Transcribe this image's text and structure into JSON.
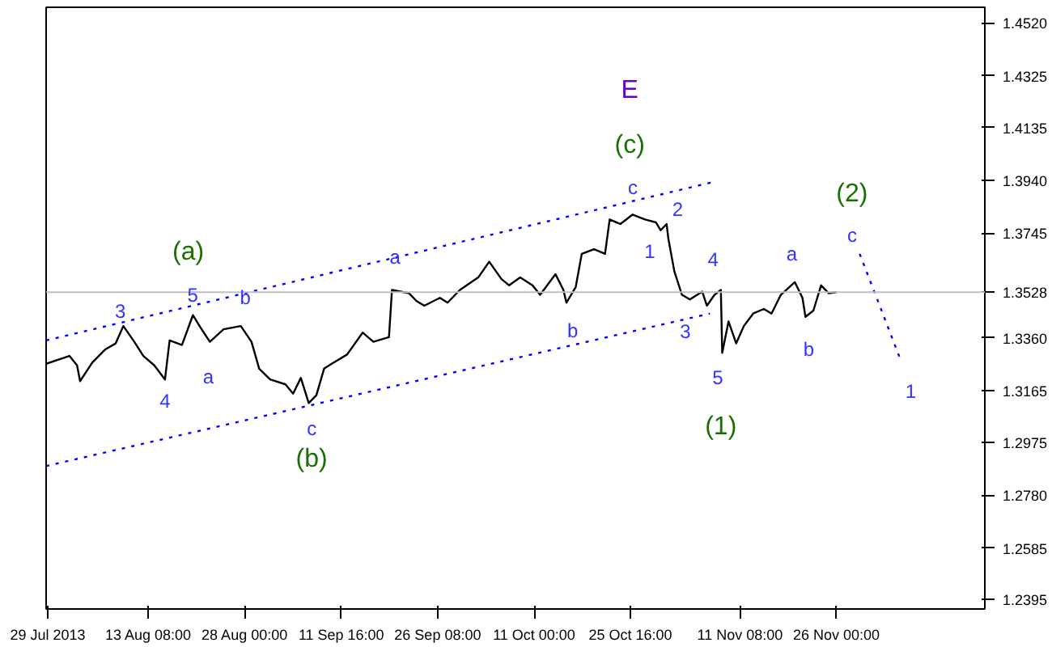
{
  "chart_data": {
    "type": "line",
    "grid": false,
    "xlim": [
      "2013-07-28T18:00",
      "2013-12-18T14:00"
    ],
    "ylim": [
      1.236,
      1.4578
    ],
    "xticks": [
      {
        "value": "2013-07-29T00:00",
        "label": "29 Jul 2013"
      },
      {
        "value": "2013-08-13T08:00",
        "label": "13 Aug 08:00"
      },
      {
        "value": "2013-08-28T00:00",
        "label": "28 Aug 00:00"
      },
      {
        "value": "2013-09-11T16:00",
        "label": "11 Sep 16:00"
      },
      {
        "value": "2013-09-26T08:00",
        "label": "26 Sep 08:00"
      },
      {
        "value": "2013-10-11T00:00",
        "label": "11 Oct 00:00"
      },
      {
        "value": "2013-10-25T16:00",
        "label": "25 Oct 16:00"
      },
      {
        "value": "2013-11-11T08:00",
        "label": "11 Nov 08:00"
      },
      {
        "value": "2013-11-26T00:00",
        "label": "26 Nov 00:00"
      }
    ],
    "yticks": [
      {
        "value": 1.2395,
        "label": "1.2395"
      },
      {
        "value": 1.2585,
        "label": "1.2585"
      },
      {
        "value": 1.278,
        "label": "1.2780"
      },
      {
        "value": 1.2975,
        "label": "1.2975"
      },
      {
        "value": 1.3165,
        "label": "1.3165"
      },
      {
        "value": 1.336,
        "label": "1.3360"
      },
      {
        "value": 1.3745,
        "label": "1.3745"
      },
      {
        "value": 1.394,
        "label": "1.3940"
      },
      {
        "value": 1.4135,
        "label": "1.4135"
      },
      {
        "value": 1.4325,
        "label": "1.4325"
      },
      {
        "value": 1.452,
        "label": "1.4520"
      }
    ],
    "x": [
      "2013-07-28T18:00",
      "2013-08-01T07:00",
      "2013-08-02T11:00",
      "2013-08-02T22:00",
      "2013-08-04T19:00",
      "2013-08-06T17:00",
      "2013-08-08T08:00",
      "2013-08-09T12:00",
      "2013-08-11T04:00",
      "2013-08-12T13:00",
      "2013-08-14T05:00",
      "2013-08-15T20:00",
      "2013-08-16T13:00",
      "2013-08-18T10:00",
      "2013-08-20T02:00",
      "2013-08-21T06:00",
      "2013-08-22T16:00",
      "2013-08-24T18:00",
      "2013-08-27T09:00",
      "2013-08-29T00:00",
      "2013-08-30T04:00",
      "2013-08-31T20:00",
      "2013-09-03T04:00",
      "2013-09-04T08:00",
      "2013-09-05T12:00",
      "2013-09-06T17:00",
      "2013-09-07T21:00",
      "2013-09-09T01:00",
      "2013-09-10T05:00",
      "2013-09-12T13:00",
      "2013-09-14T22:00",
      "2013-09-16T13:00",
      "2013-09-18T22:00",
      "2013-09-19T09:00",
      "2013-09-21T23:00",
      "2013-09-23T03:00",
      "2013-09-24T07:00",
      "2013-09-26T16:00",
      "2013-09-27T20:00",
      "2013-09-29T17:00",
      "2013-10-02T12:00",
      "2013-10-04T04:00",
      "2013-10-06T01:00",
      "2013-10-07T05:00",
      "2013-10-08T21:00",
      "2013-10-10T18:00",
      "2013-10-11T22:00",
      "2013-10-14T06:00",
      "2013-10-15T11:00",
      "2013-10-15T22:00",
      "2013-10-17T08:00",
      "2013-10-18T06:00",
      "2013-10-20T03:00",
      "2013-10-21T19:00",
      "2013-10-22T12:00",
      "2013-10-24T03:00",
      "2013-10-26T00:00",
      "2013-10-27T21:00",
      "2013-10-29T13:00",
      "2013-10-30T06:00",
      "2013-10-31T04:00",
      "2013-10-31T10:00",
      "2013-11-01T08:00",
      "2013-11-02T12:00",
      "2013-11-03T17:00",
      "2013-11-05T14:00",
      "2013-11-06T07:00",
      "2013-11-07T11:00",
      "2013-11-08T10:00",
      "2013-11-08T15:00",
      "2013-11-09T14:00",
      "2013-11-10T18:00",
      "2013-11-11T22:00",
      "2013-11-13T08:00",
      "2013-11-14T23:00",
      "2013-11-16T03:00",
      "2013-11-17T13:00",
      "2013-11-19T16:00",
      "2013-11-20T20:00",
      "2013-11-21T07:00",
      "2013-11-22T12:00",
      "2013-11-23T16:00",
      "2013-11-24T20:00",
      "2013-11-26T00:00"
    ],
    "series": [
      {
        "color": "#000000",
        "line_style": "solid",
        "values": [
          1.3264,
          1.3293,
          1.3258,
          1.32,
          1.3269,
          1.3316,
          1.3339,
          1.3403,
          1.3345,
          1.3293,
          1.3258,
          1.3206,
          1.335,
          1.3333,
          1.3443,
          1.3397,
          1.3345,
          1.3391,
          1.3403,
          1.3345,
          1.3246,
          1.3206,
          1.3188,
          1.3154,
          1.3212,
          1.3119,
          1.3148,
          1.3246,
          1.3264,
          1.3298,
          1.3379,
          1.3345,
          1.3362,
          1.3536,
          1.3524,
          1.3495,
          1.3478,
          1.3507,
          1.3489,
          1.3536,
          1.3582,
          1.364,
          1.3576,
          1.3553,
          1.3582,
          1.3553,
          1.3518,
          1.3594,
          1.3536,
          1.3489,
          1.3547,
          1.3669,
          1.3686,
          1.3669,
          1.3796,
          1.3779,
          1.3814,
          1.3796,
          1.3785,
          1.3756,
          1.3779,
          1.3727,
          1.3605,
          1.3518,
          1.3501,
          1.353,
          1.3478,
          1.3518,
          1.3536,
          1.3304,
          1.342,
          1.3339,
          1.3403,
          1.3449,
          1.3466,
          1.3449,
          1.3518,
          1.3565,
          1.3507,
          1.3437,
          1.346,
          1.3553,
          1.3524,
          1.3528
        ]
      },
      {
        "type": "line",
        "color": "#0000ff",
        "line_style": "dotted",
        "x": [
          "2013-07-28T18:00",
          "2013-11-07T11:00"
        ],
        "values": [
          1.335,
          1.3935
        ]
      },
      {
        "type": "line",
        "color": "#0000ff",
        "line_style": "dotted",
        "x": [
          "2013-07-28T18:00",
          "2013-11-06T18:00"
        ],
        "values": [
          1.2887,
          1.3449
        ]
      },
      {
        "type": "line",
        "color": "#0000ff",
        "line_style": "dotted",
        "x": [
          "2013-11-29T13:00",
          "2013-12-05T15:00"
        ],
        "values": [
          1.3669,
          1.3287
        ]
      }
    ],
    "ref_lines": [
      {
        "axis": "y",
        "value": 1.3528,
        "label": "1.3528",
        "color": "#c0c0c0"
      }
    ],
    "annotations": [
      "E",
      "(c)",
      "c",
      "2",
      "1",
      "4",
      "3",
      "5",
      "(1)",
      "(2)",
      "c",
      "a",
      "b",
      "1",
      "(a)",
      "3",
      "5",
      "b",
      "4",
      "a",
      "c",
      "(b)",
      "a",
      "b"
    ]
  }
}
